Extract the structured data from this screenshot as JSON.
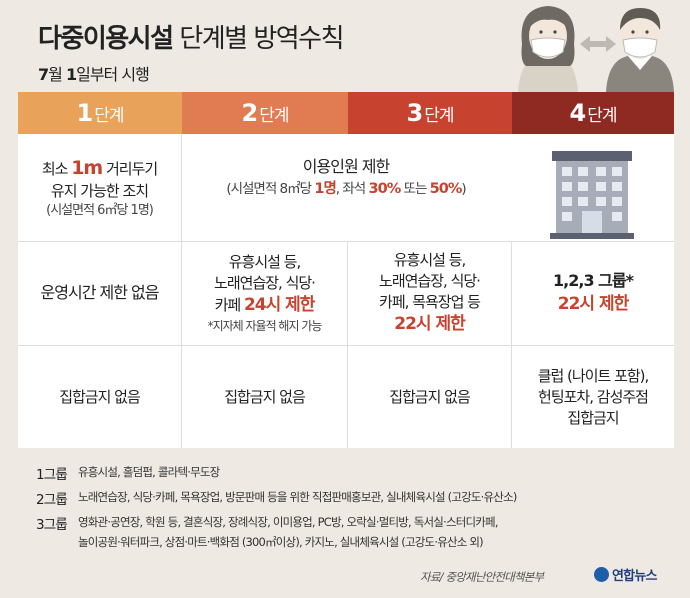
{
  "header": {
    "title_strong": "다중이용시설",
    "title_weak": "단계별 방역수칙",
    "subtitle_num1": "7",
    "subtitle_text1": "월",
    "subtitle_num2": "1",
    "subtitle_text2": "일부터 시행"
  },
  "stages": [
    {
      "num": "1",
      "label": "단계",
      "color": "#e8a25a"
    },
    {
      "num": "2",
      "label": "단계",
      "color": "#e07b52"
    },
    {
      "num": "3",
      "label": "단계",
      "color": "#c8432f"
    },
    {
      "num": "4",
      "label": "단계",
      "color": "#8e2a22"
    }
  ],
  "row1": {
    "stage1": {
      "pre": "최소 ",
      "big": "1m",
      "post": " 거리두기",
      "line2": "유지 가능한 조치",
      "note": "(시설면적 6㎡당 1명)"
    },
    "merged": {
      "line1": "이용인원 제한",
      "note_pre": "(시설면적 8㎡당 ",
      "v1": "1명",
      "note_mid": ", 좌석 ",
      "v2": "30%",
      "note_mid2": " 또는 ",
      "v3": "50%",
      "note_post": ")"
    }
  },
  "row2": {
    "stage1": "운영시간 제한 없음",
    "stage2": {
      "line1": "유흥시설 등,",
      "line2": "노래연습장, 식당·",
      "line3_pre": "카페 ",
      "line3_red": "24시 제한",
      "note": "*지자체 자율적 해지 가능"
    },
    "stage3": {
      "line1": "유흥시설 등,",
      "line2": "노래연습장, 식당·",
      "line3": "카페, 목욕장업 등",
      "red": "22시 제한"
    },
    "stage4": {
      "line1": "1,2,3 그룹*",
      "red": "22시 제한"
    }
  },
  "row3": {
    "stage1": "집합금지 없음",
    "stage2": "집합금지 없음",
    "stage3": "집합금지 없음",
    "stage4": {
      "line1": "클럽 (나이트 포함),",
      "line2": "헌팅포차, 감성주점",
      "line3": "집합금지"
    }
  },
  "legend": [
    {
      "group": "1그룹",
      "lines": [
        "유흥시설, 홀덤펍, 콜라텍·무도장"
      ]
    },
    {
      "group": "2그룹",
      "lines": [
        "노래연습장, 식당·카페, 목욕장업, 방문판매 등을 위한 직접판매홍보관, 실내체육시설 (고강도·유산소)"
      ]
    },
    {
      "group": "3그룹",
      "lines": [
        "영화관·공연장, 학원 등, 결혼식장, 장례식장, 이미용업, PC방, 오락실·멀티방, 독서실·스터디카페,",
        "놀이공원·워터파크, 상점·마트·백화점 (300㎡이상), 카지노, 실내체육시설 (고강도·유산소 외)"
      ]
    }
  ],
  "source": "자료/ 중앙재난안전대책본부",
  "logo": "연합뉴스",
  "icons": {
    "people": "masked-people-icon",
    "building": "building-icon"
  }
}
